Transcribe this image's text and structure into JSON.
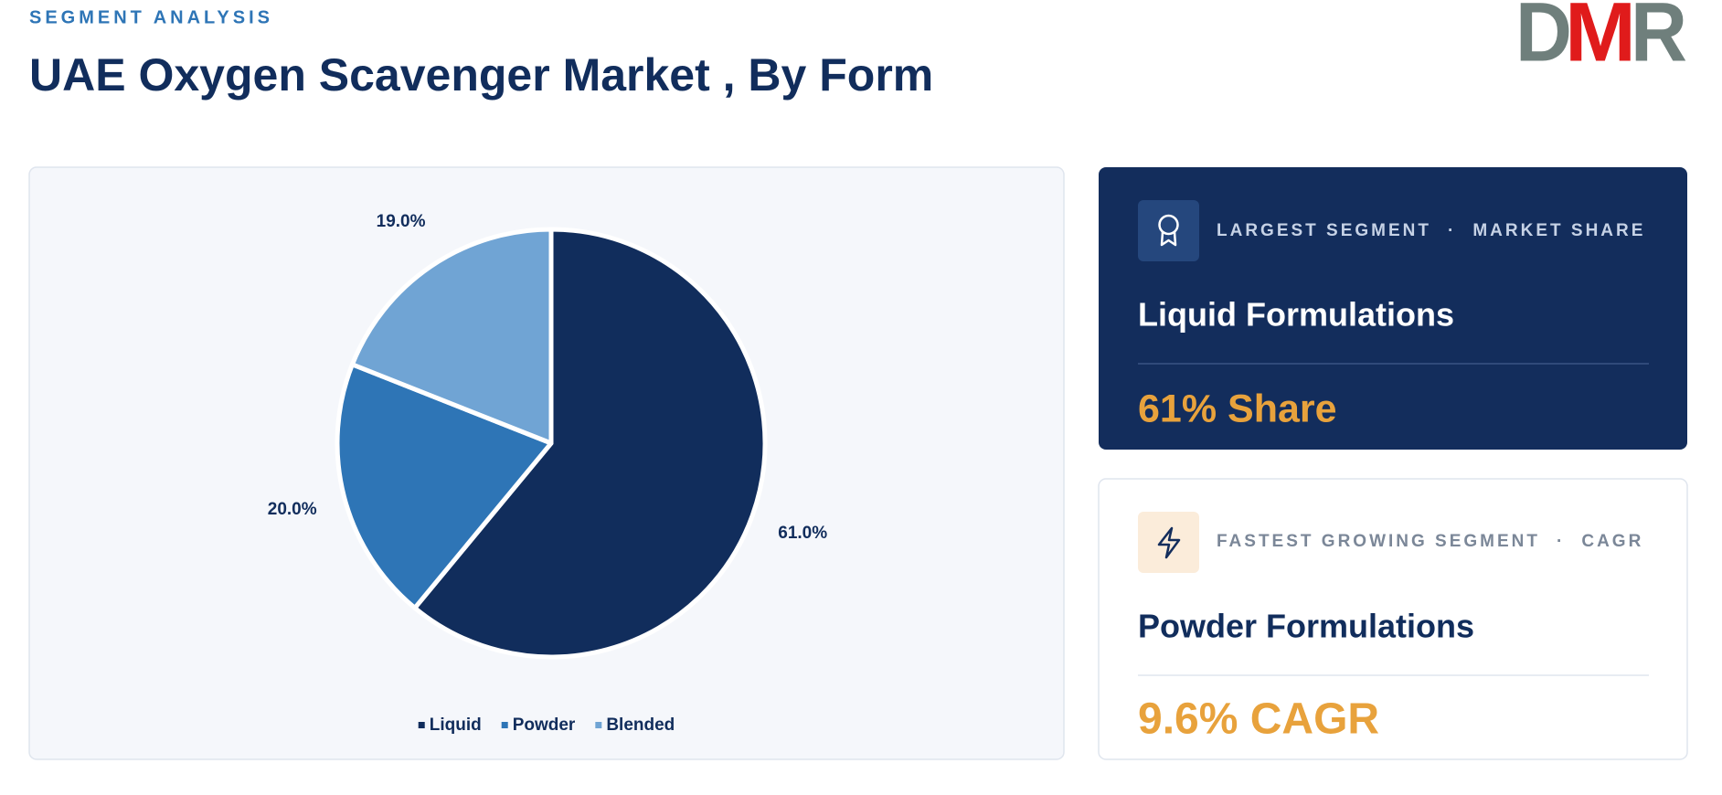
{
  "header": {
    "eyebrow": "SEGMENT ANALYSIS",
    "logo": [
      "D",
      "M",
      "R"
    ]
  },
  "chart_data": {
    "type": "pie",
    "title": "UAE Oxygen Scavenger Market , By Form",
    "categories": [
      "Liquid",
      "Powder",
      "Blended"
    ],
    "values": [
      61.0,
      20.0,
      19.0
    ],
    "value_labels": [
      "61.0%",
      "20.0%",
      "19.0%"
    ],
    "colors": [
      "#112d5c",
      "#2e75b6",
      "#70a4d4"
    ]
  },
  "cards": [
    {
      "label": "LARGEST SEGMENT",
      "separator": "·",
      "metric": "MARKET SHARE",
      "segment": "Liquid Formulations",
      "value": "61% Share"
    },
    {
      "label": "FASTEST GROWING SEGMENT",
      "separator": "·",
      "metric": "CAGR",
      "segment": "Powder Formulations",
      "value": "9.6% CAGR"
    }
  ]
}
